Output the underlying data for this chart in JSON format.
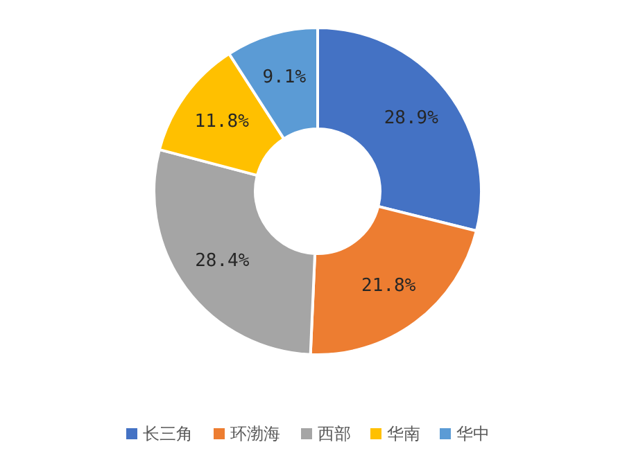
{
  "chart_data": {
    "type": "donut",
    "categories": [
      "长三角",
      "环渤海",
      "西部",
      "华南",
      "华中"
    ],
    "values": [
      28.9,
      21.8,
      28.4,
      11.8,
      9.1
    ],
    "colors": [
      "#4472c4",
      "#ed7d31",
      "#a5a5a5",
      "#ffc000",
      "#5b9bd5"
    ],
    "value_labels": [
      "28.9%",
      "21.8%",
      "28.4%",
      "11.8%",
      "9.1%"
    ],
    "legend": "bottom"
  }
}
